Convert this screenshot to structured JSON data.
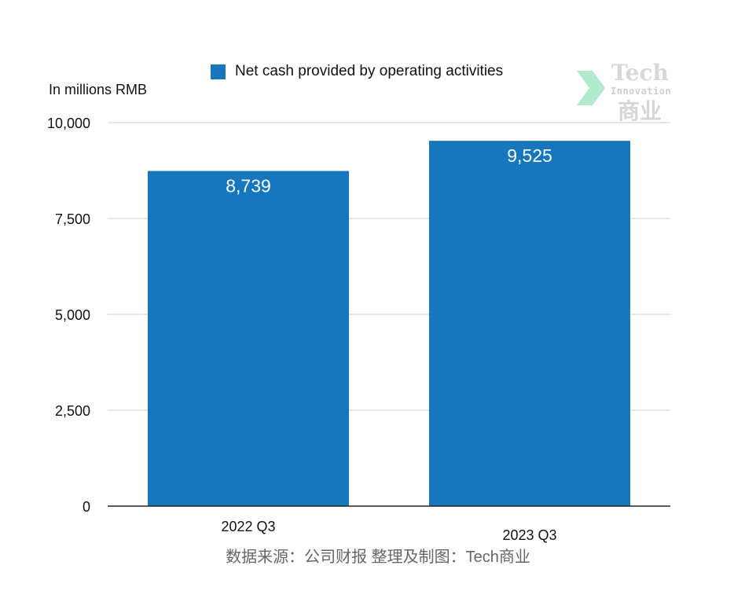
{
  "chart_data": {
    "type": "bar",
    "title": "",
    "xlabel": "",
    "ylabel": "In millions RMB",
    "categories": [
      "2022 Q3",
      "2023 Q3"
    ],
    "series": [
      {
        "name": "Net cash provided by operating activities",
        "values": [
          8739,
          9525
        ],
        "color": "#1677bc"
      }
    ],
    "data_labels": [
      "8,739",
      "9,525"
    ],
    "ylim": [
      0,
      10000
    ],
    "yticks": [
      0,
      2500,
      5000,
      7500,
      10000
    ],
    "ytick_labels": [
      "0",
      "2,500",
      "5,000",
      "7,500",
      "10,000"
    ],
    "grid": true,
    "legend_position": "top"
  },
  "source_note": "数据来源：公司财报 整理及制图：Tech商业",
  "watermark": {
    "line1": "Tech",
    "line2": "Innovation",
    "line3": "商业",
    "arrow_color": "#8ee3b8"
  }
}
